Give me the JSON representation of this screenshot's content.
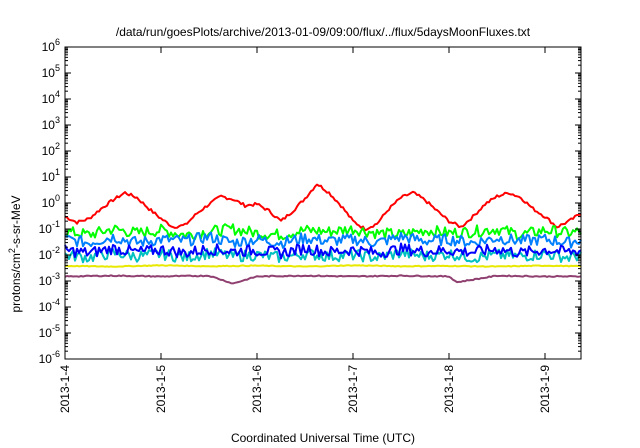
{
  "chart_data": {
    "type": "line",
    "title": "/data/run/goesPlots/archive/2013-01-09/09:00/flux/../flux/5daysMoonFluxes.txt",
    "xlabel": "Coordinated Universal Time (UTC)",
    "ylabel_parts": {
      "prefix": "protons/cm",
      "sup": "2",
      "suffix": "-s-sr-MeV"
    },
    "yscale": "log",
    "ylim": [
      1e-06,
      1000000.0
    ],
    "xlim": [
      "2013-01-04",
      "2013-01-09T09:00"
    ],
    "grid": false,
    "y_ticks": [
      {
        "value": 1e-06,
        "base": "10",
        "exp": "-6"
      },
      {
        "value": 1e-05,
        "base": "10",
        "exp": "-5"
      },
      {
        "value": 0.0001,
        "base": "10",
        "exp": "-4"
      },
      {
        "value": 0.001,
        "base": "10",
        "exp": "-3"
      },
      {
        "value": 0.01,
        "base": "10",
        "exp": "-2"
      },
      {
        "value": 0.1,
        "base": "10",
        "exp": "-1"
      },
      {
        "value": 1,
        "base": "10",
        "exp": "0"
      },
      {
        "value": 10,
        "base": "10",
        "exp": "1"
      },
      {
        "value": 100,
        "base": "10",
        "exp": "2"
      },
      {
        "value": 1000,
        "base": "10",
        "exp": "3"
      },
      {
        "value": 10000,
        "base": "10",
        "exp": "4"
      },
      {
        "value": 100000,
        "base": "10",
        "exp": "5"
      },
      {
        "value": 1000000,
        "base": "10",
        "exp": "6"
      }
    ],
    "x_ticks": [
      {
        "value": "2013-01-04",
        "label": "2013-1-4"
      },
      {
        "value": "2013-01-05",
        "label": "2013-1-5"
      },
      {
        "value": "2013-01-06",
        "label": "2013-1-6"
      },
      {
        "value": "2013-01-07",
        "label": "2013-1-7"
      },
      {
        "value": "2013-01-08",
        "label": "2013-1-8"
      },
      {
        "value": "2013-01-09",
        "label": "2013-1-9"
      }
    ],
    "series": [
      {
        "color": "#ff0000",
        "x": [
          "2013-01-04T00:00",
          "2013-01-04T03:00",
          "2013-01-04T06:00",
          "2013-01-04T09:00",
          "2013-01-04T12:00",
          "2013-01-04T15:00",
          "2013-01-04T18:00",
          "2013-01-04T21:00",
          "2013-01-05T00:00",
          "2013-01-05T03:00",
          "2013-01-05T06:00",
          "2013-01-05T09:00",
          "2013-01-05T12:00",
          "2013-01-05T15:00",
          "2013-01-05T18:00",
          "2013-01-05T21:00",
          "2013-01-06T00:00",
          "2013-01-06T03:00",
          "2013-01-06T06:00",
          "2013-01-06T09:00",
          "2013-01-06T12:00",
          "2013-01-06T15:00",
          "2013-01-06T18:00",
          "2013-01-06T21:00",
          "2013-01-07T00:00",
          "2013-01-07T03:00",
          "2013-01-07T06:00",
          "2013-01-07T09:00",
          "2013-01-07T12:00",
          "2013-01-07T15:00",
          "2013-01-07T18:00",
          "2013-01-07T21:00",
          "2013-01-08T00:00",
          "2013-01-08T03:00",
          "2013-01-08T06:00",
          "2013-01-08T09:00",
          "2013-01-08T12:00",
          "2013-01-08T15:00",
          "2013-01-08T18:00",
          "2013-01-08T21:00",
          "2013-01-09T00:00",
          "2013-01-09T03:00",
          "2013-01-09T06:00",
          "2013-01-09T09:00"
        ],
        "values": [
          0.3,
          0.18,
          0.25,
          0.6,
          1.3,
          2.5,
          1.6,
          0.6,
          0.25,
          0.12,
          0.14,
          0.4,
          0.9,
          1.8,
          1.4,
          0.8,
          0.9,
          0.5,
          0.2,
          0.5,
          1.5,
          5.5,
          2.5,
          0.8,
          0.2,
          0.1,
          0.16,
          0.6,
          1.6,
          2.5,
          1.3,
          0.5,
          0.2,
          0.12,
          0.3,
          0.9,
          1.8,
          2.5,
          1.6,
          0.6,
          0.3,
          0.12,
          0.2,
          0.4
        ]
      },
      {
        "color": "#00ff00",
        "x": [
          "2013-01-04T00:00",
          "2013-01-04T06:00",
          "2013-01-04T12:00",
          "2013-01-04T18:00",
          "2013-01-05T00:00",
          "2013-01-05T06:00",
          "2013-01-05T12:00",
          "2013-01-05T18:00",
          "2013-01-06T00:00",
          "2013-01-06T06:00",
          "2013-01-06T12:00",
          "2013-01-06T18:00",
          "2013-01-07T00:00",
          "2013-01-07T06:00",
          "2013-01-07T12:00",
          "2013-01-07T18:00",
          "2013-01-08T00:00",
          "2013-01-08T06:00",
          "2013-01-08T12:00",
          "2013-01-08T18:00",
          "2013-01-09T00:00",
          "2013-01-09T06:00",
          "2013-01-09T09:00"
        ],
        "values": [
          0.08,
          0.06,
          0.1,
          0.07,
          0.09,
          0.06,
          0.08,
          0.1,
          0.07,
          0.06,
          0.09,
          0.08,
          0.1,
          0.07,
          0.06,
          0.09,
          0.07,
          0.08,
          0.1,
          0.06,
          0.09,
          0.07,
          0.08
        ]
      },
      {
        "color": "#0080ff",
        "x": [
          "2013-01-04T00:00",
          "2013-01-04T06:00",
          "2013-01-04T12:00",
          "2013-01-04T18:00",
          "2013-01-05T00:00",
          "2013-01-05T06:00",
          "2013-01-05T12:00",
          "2013-01-05T18:00",
          "2013-01-06T00:00",
          "2013-01-06T06:00",
          "2013-01-06T12:00",
          "2013-01-06T18:00",
          "2013-01-07T00:00",
          "2013-01-07T06:00",
          "2013-01-07T12:00",
          "2013-01-07T18:00",
          "2013-01-08T00:00",
          "2013-01-08T06:00",
          "2013-01-08T12:00",
          "2013-01-08T18:00",
          "2013-01-09T00:00",
          "2013-01-09T06:00",
          "2013-01-09T09:00"
        ],
        "values": [
          0.04,
          0.03,
          0.05,
          0.03,
          0.04,
          0.035,
          0.05,
          0.03,
          0.04,
          0.03,
          0.045,
          0.035,
          0.04,
          0.03,
          0.05,
          0.035,
          0.04,
          0.03,
          0.045,
          0.035,
          0.04,
          0.03,
          0.04
        ]
      },
      {
        "color": "#00c0c0",
        "x": [
          "2013-01-04T00:00",
          "2013-01-04T06:00",
          "2013-01-04T12:00",
          "2013-01-04T18:00",
          "2013-01-05T00:00",
          "2013-01-05T06:00",
          "2013-01-05T12:00",
          "2013-01-05T18:00",
          "2013-01-06T00:00",
          "2013-01-06T06:00",
          "2013-01-06T12:00",
          "2013-01-06T18:00",
          "2013-01-07T00:00",
          "2013-01-07T06:00",
          "2013-01-07T12:00",
          "2013-01-07T18:00",
          "2013-01-08T00:00",
          "2013-01-08T06:00",
          "2013-01-08T12:00",
          "2013-01-08T18:00",
          "2013-01-09T00:00",
          "2013-01-09T06:00",
          "2013-01-09T09:00"
        ],
        "values": [
          0.01,
          0.008,
          0.012,
          0.009,
          0.011,
          0.008,
          0.012,
          0.009,
          0.01,
          0.008,
          0.011,
          0.009,
          0.01,
          0.008,
          0.012,
          0.009,
          0.011,
          0.008,
          0.01,
          0.009,
          0.011,
          0.008,
          0.01
        ]
      },
      {
        "color": "#0000ff",
        "x": [
          "2013-01-04T00:00",
          "2013-01-04T06:00",
          "2013-01-04T12:00",
          "2013-01-04T18:00",
          "2013-01-05T00:00",
          "2013-01-05T06:00",
          "2013-01-05T12:00",
          "2013-01-05T18:00",
          "2013-01-06T00:00",
          "2013-01-06T06:00",
          "2013-01-06T12:00",
          "2013-01-06T18:00",
          "2013-01-07T00:00",
          "2013-01-07T06:00",
          "2013-01-07T12:00",
          "2013-01-07T18:00",
          "2013-01-08T00:00",
          "2013-01-08T06:00",
          "2013-01-08T12:00",
          "2013-01-08T18:00",
          "2013-01-09T00:00",
          "2013-01-09T06:00",
          "2013-01-09T09:00"
        ],
        "values": [
          0.015,
          0.012,
          0.018,
          0.013,
          0.016,
          0.012,
          0.017,
          0.014,
          0.015,
          0.012,
          0.018,
          0.013,
          0.016,
          0.012,
          0.017,
          0.014,
          0.015,
          0.013,
          0.017,
          0.012,
          0.016,
          0.013,
          0.015
        ]
      },
      {
        "color": "#e8e800",
        "x": [
          "2013-01-04T00:00",
          "2013-01-04T12:00",
          "2013-01-05T00:00",
          "2013-01-05T12:00",
          "2013-01-06T00:00",
          "2013-01-06T12:00",
          "2013-01-07T00:00",
          "2013-01-07T12:00",
          "2013-01-08T00:00",
          "2013-01-08T12:00",
          "2013-01-09T00:00",
          "2013-01-09T09:00"
        ],
        "values": [
          0.0038,
          0.0036,
          0.004,
          0.0037,
          0.0039,
          0.0036,
          0.004,
          0.0037,
          0.0038,
          0.0036,
          0.0039,
          0.0037
        ]
      },
      {
        "color": "#904070",
        "x": [
          "2013-01-04T00:00",
          "2013-01-04T12:00",
          "2013-01-05T00:00",
          "2013-01-05T12:00",
          "2013-01-05T18:00",
          "2013-01-06T00:00",
          "2013-01-06T12:00",
          "2013-01-07T00:00",
          "2013-01-07T12:00",
          "2013-01-08T00:00",
          "2013-01-08T02:00",
          "2013-01-08T12:00",
          "2013-01-09T00:00",
          "2013-01-09T09:00"
        ],
        "values": [
          0.0015,
          0.0016,
          0.0015,
          0.0016,
          0.0008,
          0.0015,
          0.0016,
          0.0015,
          0.0016,
          0.0015,
          0.0009,
          0.0016,
          0.0015,
          0.0015
        ]
      }
    ]
  }
}
